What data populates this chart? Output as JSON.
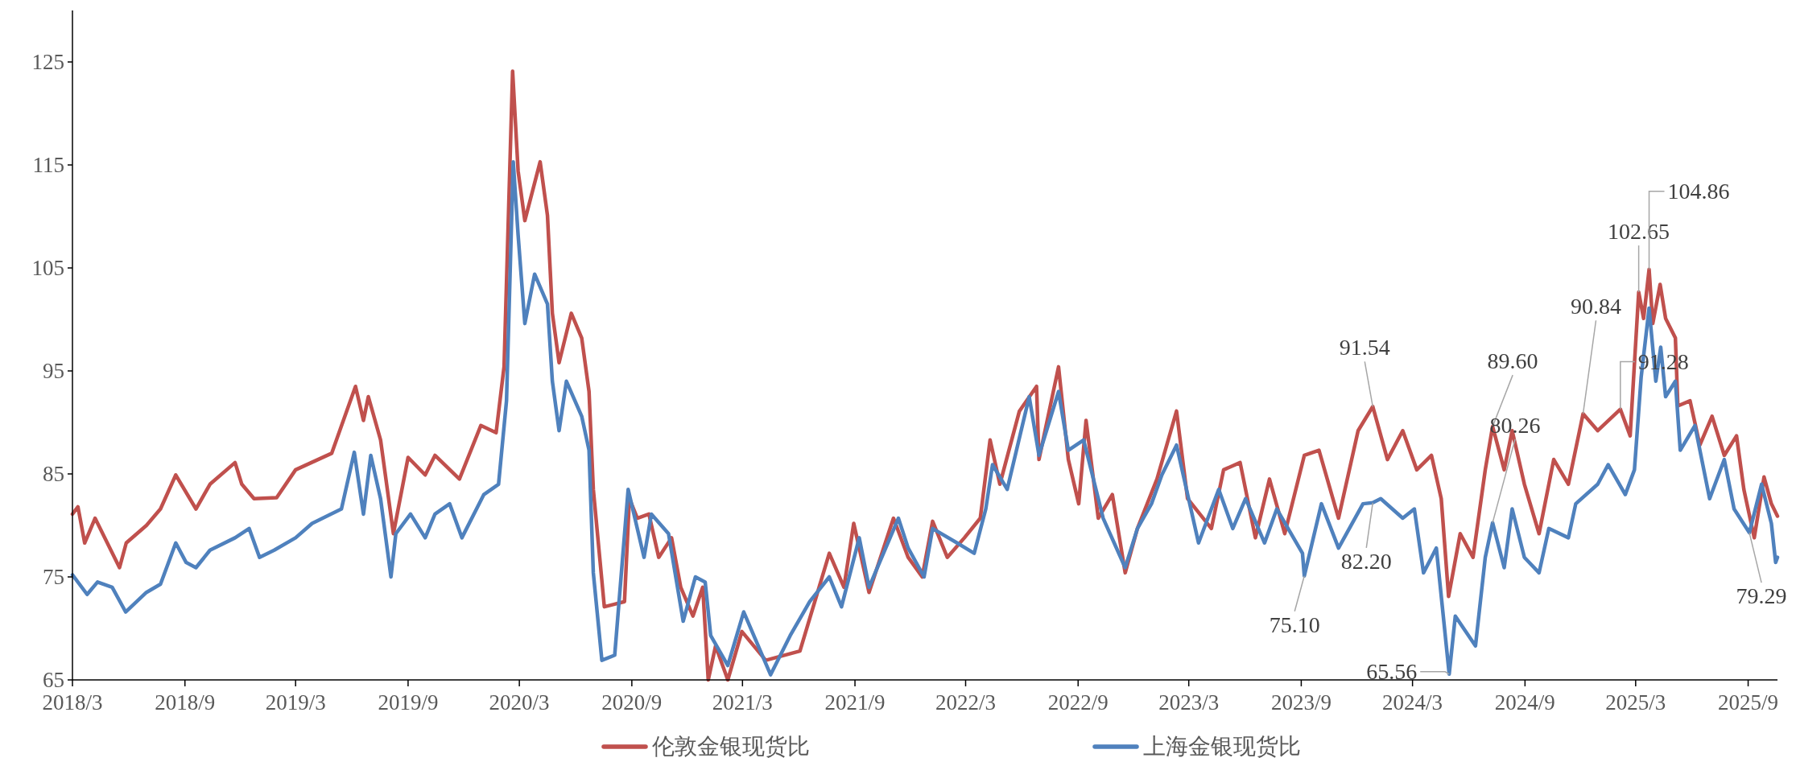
{
  "chart_data": {
    "type": "line",
    "xlim": [
      "2018-03-01",
      "2025-10-19"
    ],
    "xticks": [
      {
        "value": "2018-03-01",
        "label": "2018/3"
      },
      {
        "value": "2018-09-01",
        "label": "2018/9"
      },
      {
        "value": "2019-03-01",
        "label": "2019/3"
      },
      {
        "value": "2019-09-01",
        "label": "2019/9"
      },
      {
        "value": "2020-03-01",
        "label": "2020/3"
      },
      {
        "value": "2020-09-01",
        "label": "2020/9"
      },
      {
        "value": "2021-03-01",
        "label": "2021/3"
      },
      {
        "value": "2021-09-01",
        "label": "2021/9"
      },
      {
        "value": "2022-03-01",
        "label": "2022/3"
      },
      {
        "value": "2022-09-01",
        "label": "2022/9"
      },
      {
        "value": "2023-03-01",
        "label": "2023/3"
      },
      {
        "value": "2023-09-01",
        "label": "2023/9"
      },
      {
        "value": "2024-03-01",
        "label": "2024/3"
      },
      {
        "value": "2024-09-01",
        "label": "2024/9"
      },
      {
        "value": "2025-03-01",
        "label": "2025/3"
      },
      {
        "value": "2025-09-01",
        "label": "2025/9"
      }
    ],
    "ylim": [
      65,
      130
    ],
    "yticks": [
      65,
      75,
      85,
      95,
      105,
      115,
      125
    ],
    "grid": false,
    "legend": "bottom",
    "line_style": "solid",
    "marker": "none",
    "series": [
      {
        "name": "伦敦金银现货比",
        "color": "#c0504d",
        "x": [
          "2018-03-01",
          "2018-03-10",
          "2018-03-21",
          "2018-04-07",
          "2018-05-17",
          "2018-05-28",
          "2018-06-30",
          "2018-07-23",
          "2018-08-17",
          "2018-09-19",
          "2018-10-12",
          "2018-11-22",
          "2018-12-03",
          "2018-12-23",
          "2019-01-29",
          "2019-03-01",
          "2019-04-29",
          "2019-06-07",
          "2019-06-20",
          "2019-06-28",
          "2019-07-18",
          "2019-08-08",
          "2019-09-01",
          "2019-09-29",
          "2019-10-15",
          "2019-11-24",
          "2019-12-29",
          "2020-01-23",
          "2020-02-05",
          "2020-02-19",
          "2020-02-28",
          "2020-03-10",
          "2020-04-04",
          "2020-04-16",
          "2020-04-24",
          "2020-05-05",
          "2020-05-25",
          "2020-06-11",
          "2020-06-23",
          "2020-06-30",
          "2020-07-18",
          "2020-08-20",
          "2020-08-28",
          "2020-09-10",
          "2020-09-29",
          "2020-10-15",
          "2020-11-05",
          "2020-11-20",
          "2020-12-10",
          "2020-12-26",
          "2021-01-04",
          "2021-01-16",
          "2021-02-05",
          "2021-02-28",
          "2021-04-08",
          "2021-06-03",
          "2021-07-21",
          "2021-08-14",
          "2021-08-30",
          "2021-09-24",
          "2021-11-03",
          "2021-11-27",
          "2021-12-20",
          "2022-01-06",
          "2022-01-30",
          "2022-02-27",
          "2022-03-25",
          "2022-04-10",
          "2022-04-26",
          "2022-05-28",
          "2022-06-25",
          "2022-06-29",
          "2022-07-31",
          "2022-08-16",
          "2022-09-02",
          "2022-09-14",
          "2022-10-04",
          "2022-10-27",
          "2022-11-17",
          "2022-12-07",
          "2023-01-08",
          "2023-02-09",
          "2023-02-27",
          "2023-04-07",
          "2023-04-27",
          "2023-05-24",
          "2023-06-18",
          "2023-07-11",
          "2023-08-05",
          "2023-09-06",
          "2023-09-30",
          "2023-11-01",
          "2023-12-03",
          "2023-12-27",
          "2024-01-20",
          "2024-02-14",
          "2024-03-08",
          "2024-04-01",
          "2024-04-17",
          "2024-04-29",
          "2024-05-18",
          "2024-06-08",
          "2024-06-28",
          "2024-07-10",
          "2024-07-29",
          "2024-08-11",
          "2024-08-31",
          "2024-09-24",
          "2024-10-18",
          "2024-11-11",
          "2024-12-05",
          "2024-12-29",
          "2025-02-04",
          "2025-02-20",
          "2025-03-06",
          "2025-03-14",
          "2025-03-23",
          "2025-03-29",
          "2025-04-10",
          "2025-04-19",
          "2025-05-05",
          "2025-05-09",
          "2025-05-29",
          "2025-06-14",
          "2025-07-04",
          "2025-07-24",
          "2025-08-13",
          "2025-08-25",
          "2025-09-11",
          "2025-09-27",
          "2025-10-09",
          "2025-10-19"
        ],
        "values": [
          81.1,
          81.8,
          78.3,
          80.7,
          75.9,
          78.3,
          80,
          81.6,
          84.9,
          81.6,
          84,
          86.1,
          84,
          82.6,
          82.7,
          85.4,
          87,
          93.5,
          90.2,
          92.5,
          88.3,
          79.2,
          86.6,
          84.9,
          86.8,
          84.5,
          89.7,
          89,
          95.4,
          124.1,
          114.4,
          109.6,
          115.3,
          110.1,
          100.6,
          95.8,
          100.6,
          98.2,
          93,
          83.5,
          72.1,
          72.6,
          82.6,
          80.7,
          81.1,
          76.9,
          78.8,
          74,
          71.2,
          74,
          65,
          68.3,
          65,
          69.7,
          66.9,
          67.8,
          77.3,
          74,
          80.2,
          73.5,
          80.7,
          76.9,
          75,
          80.4,
          76.9,
          78.8,
          80.7,
          88.3,
          84,
          91.1,
          93.5,
          86.4,
          95.4,
          86.4,
          82.1,
          90.2,
          80.7,
          83,
          75.4,
          79.7,
          84.5,
          91.1,
          82.6,
          79.7,
          85.4,
          86.1,
          78.8,
          84.5,
          79.2,
          86.8,
          87.3,
          80.7,
          89.2,
          91.54,
          86.4,
          89.2,
          85.4,
          86.8,
          82.6,
          73.1,
          79.2,
          76.9,
          85.4,
          89.6,
          85.4,
          89.2,
          84,
          79.2,
          86.4,
          84,
          90.84,
          89.2,
          91.28,
          88.7,
          102.65,
          100.1,
          104.86,
          99.6,
          103.4,
          100.1,
          98.2,
          91.6,
          92.1,
          87.8,
          90.6,
          86.8,
          88.7,
          83.5,
          78.8,
          84.7,
          82.1,
          80.9
        ]
      },
      {
        "name": "上海金银现货比",
        "color": "#4f81bd",
        "x": [
          "2018-03-01",
          "2018-03-25",
          "2018-04-11",
          "2018-05-05",
          "2018-05-27",
          "2018-06-30",
          "2018-07-23",
          "2018-08-17",
          "2018-09-03",
          "2018-09-19",
          "2018-10-12",
          "2018-11-22",
          "2018-12-15",
          "2019-01-01",
          "2019-01-25",
          "2019-03-01",
          "2019-03-28",
          "2019-05-15",
          "2019-06-05",
          "2019-06-20",
          "2019-07-02",
          "2019-07-18",
          "2019-08-04",
          "2019-08-12",
          "2019-09-05",
          "2019-09-29",
          "2019-10-15",
          "2019-11-08",
          "2019-11-28",
          "2020-01-03",
          "2020-01-27",
          "2020-02-09",
          "2020-02-20",
          "2020-02-28",
          "2020-03-10",
          "2020-03-26",
          "2020-04-16",
          "2020-04-24",
          "2020-05-05",
          "2020-05-17",
          "2020-06-11",
          "2020-06-23",
          "2020-06-30",
          "2020-07-14",
          "2020-08-04",
          "2020-08-26",
          "2020-09-21",
          "2020-10-03",
          "2020-10-31",
          "2020-11-24",
          "2020-12-14",
          "2020-12-30",
          "2021-01-08",
          "2021-02-05",
          "2021-03-03",
          "2021-04-16",
          "2021-05-18",
          "2021-06-19",
          "2021-07-21",
          "2021-08-10",
          "2021-09-08",
          "2021-09-24",
          "2021-11-11",
          "2021-11-27",
          "2021-12-23",
          "2022-01-06",
          "2022-02-15",
          "2022-03-15",
          "2022-04-03",
          "2022-04-14",
          "2022-05-08",
          "2022-06-13",
          "2022-06-29",
          "2022-07-31",
          "2022-08-16",
          "2022-09-10",
          "2022-10-12",
          "2022-11-17",
          "2022-12-07",
          "2022-12-30",
          "2023-01-16",
          "2023-02-09",
          "2023-03-17",
          "2023-04-19",
          "2023-05-12",
          "2023-06-02",
          "2023-07-03",
          "2023-07-23",
          "2023-09-03",
          "2023-09-06",
          "2023-10-04",
          "2023-11-01",
          "2023-12-11",
          "2023-12-27",
          "2024-01-09",
          "2024-02-14",
          "2024-03-04",
          "2024-03-19",
          "2024-04-09",
          "2024-04-30",
          "2024-05-10",
          "2024-06-12",
          "2024-06-28",
          "2024-07-10",
          "2024-07-29",
          "2024-08-11",
          "2024-08-31",
          "2024-09-24",
          "2024-10-10",
          "2024-11-11",
          "2024-11-23",
          "2024-12-29",
          "2025-01-15",
          "2025-02-12",
          "2025-02-27",
          "2025-03-10",
          "2025-03-23",
          "2025-04-03",
          "2025-04-11",
          "2025-04-19",
          "2025-05-05",
          "2025-05-13",
          "2025-06-06",
          "2025-06-30",
          "2025-07-24",
          "2025-08-09",
          "2025-09-03",
          "2025-09-23",
          "2025-10-09",
          "2025-10-16",
          "2025-10-19"
        ],
        "values": [
          75.2,
          73.3,
          74.5,
          74,
          71.6,
          73.5,
          74.3,
          78.3,
          76.4,
          75.9,
          77.6,
          78.8,
          79.7,
          76.9,
          77.6,
          78.8,
          80.2,
          81.6,
          87.1,
          81.1,
          86.8,
          82.6,
          75,
          79.2,
          81.1,
          78.8,
          81.1,
          82.1,
          78.8,
          83,
          84,
          92.1,
          115.3,
          108.2,
          99.6,
          104.4,
          101.5,
          94,
          89.2,
          94,
          90.6,
          87.3,
          75.4,
          66.9,
          67.4,
          83.5,
          76.9,
          81.1,
          79.2,
          70.7,
          75,
          74.5,
          69.3,
          66.4,
          71.6,
          65.5,
          69.3,
          72.6,
          75,
          72.1,
          78.8,
          74,
          80.7,
          77.8,
          75,
          79.7,
          78.3,
          77.3,
          81.6,
          85.9,
          83.5,
          92.5,
          86.8,
          93,
          87.3,
          88.3,
          80.7,
          75.9,
          79.7,
          82.1,
          84.9,
          87.8,
          78.3,
          83.5,
          79.7,
          82.6,
          78.3,
          81.6,
          77.3,
          75.1,
          82.1,
          77.8,
          82.1,
          82.2,
          82.6,
          80.7,
          81.6,
          75.4,
          77.8,
          65.56,
          71.2,
          68.3,
          76.9,
          80.26,
          75.9,
          81.6,
          76.9,
          75.4,
          79.7,
          78.8,
          82.1,
          84,
          85.9,
          83,
          85.4,
          94.4,
          101.1,
          94,
          97.3,
          92.5,
          94,
          87.3,
          89.7,
          82.6,
          86.4,
          81.6,
          79.29,
          84,
          80.2,
          76.4,
          76.9
        ]
      }
    ],
    "annotations": [
      {
        "text": "91.54",
        "x": "2023-12-27",
        "y": 91.54
      },
      {
        "text": "75.10",
        "x": "2023-09-06",
        "y": 75.1
      },
      {
        "text": "82.20",
        "x": "2023-12-27",
        "y": 82.2
      },
      {
        "text": "65.56",
        "x": "2024-04-30",
        "y": 65.56
      },
      {
        "text": "89.60",
        "x": "2024-07-10",
        "y": 89.6
      },
      {
        "text": "80.26",
        "x": "2024-07-10",
        "y": 80.26
      },
      {
        "text": "90.84",
        "x": "2024-12-05",
        "y": 90.84
      },
      {
        "text": "91.28",
        "x": "2025-02-04",
        "y": 91.28
      },
      {
        "text": "102.65",
        "x": "2025-03-06",
        "y": 102.65
      },
      {
        "text": "104.86",
        "x": "2025-03-23",
        "y": 104.86
      },
      {
        "text": "79.29",
        "x": "2025-09-03",
        "y": 79.29
      }
    ]
  }
}
